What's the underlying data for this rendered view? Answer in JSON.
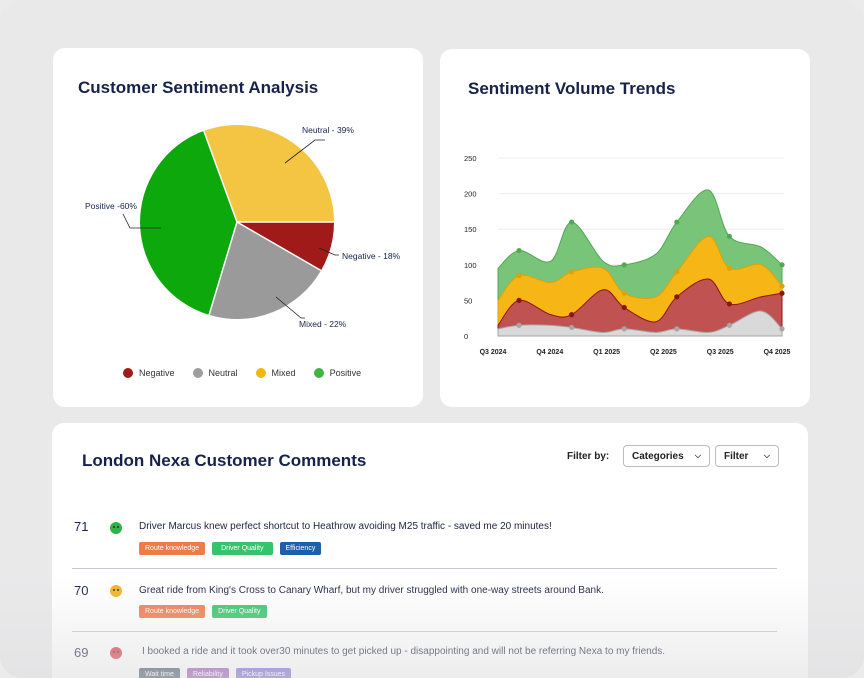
{
  "pie_card": {
    "title": "Customer Sentiment Analysis",
    "slices": [
      {
        "label": "Neutral - 39%",
        "color": "#f4c542"
      },
      {
        "label": "Negative - 18%",
        "color": "#a01a1a"
      },
      {
        "label": "Mixed - 22%",
        "color": "#9a9a9a"
      },
      {
        "label": "Positive -60%",
        "color": "#0ca80c"
      }
    ],
    "legend": [
      {
        "label": "Negative",
        "color": "#a01a1a"
      },
      {
        "label": "Neutral",
        "color": "#9e9e9e"
      },
      {
        "label": "Mixed",
        "color": "#f1b712"
      },
      {
        "label": "Positive",
        "color": "#43b443"
      }
    ]
  },
  "chart_data": {
    "type": "area",
    "title": "Sentiment Volume Trends",
    "x_labels": [
      "Q3 2024",
      "Q4 2024",
      "Q1 2025",
      "Q2 2025",
      "Q3 2025",
      "Q4 2025"
    ],
    "y_ticks": [
      "250",
      "200",
      "150",
      "100",
      "50",
      "0"
    ],
    "ylim": [
      0,
      250
    ],
    "grid": true,
    "x_positions": [
      0,
      0.4,
      1.0,
      1.4,
      2.0,
      2.4,
      3.0,
      3.4,
      4.0,
      4.4,
      5.0,
      5.4
    ],
    "series": [
      {
        "color": "#d9d9d9",
        "stroke": "#a6a6a6",
        "values": [
          10,
          15,
          15,
          12,
          5,
          10,
          5,
          10,
          5,
          15,
          35,
          10
        ]
      },
      {
        "color": "#c05252",
        "stroke": "#8b1414",
        "values": [
          15,
          50,
          30,
          30,
          65,
          40,
          20,
          55,
          80,
          45,
          55,
          60
        ]
      },
      {
        "color": "#f6b716",
        "stroke": "#e0a106",
        "values": [
          50,
          85,
          75,
          90,
          95,
          60,
          55,
          90,
          140,
          95,
          100,
          70
        ]
      },
      {
        "color": "#78c478",
        "stroke": "#52a852",
        "values": [
          95,
          120,
          105,
          160,
          105,
          100,
          115,
          160,
          205,
          140,
          125,
          100
        ]
      }
    ]
  },
  "comments": {
    "title": "London Nexa Customer Comments",
    "filter_label": "Filter by:",
    "categories_label": "Categories",
    "filter_button": "Filter",
    "rows": [
      {
        "number": "71",
        "sentiment": "positive",
        "face_color": "#2fb24a",
        "text": "Driver Marcus knew perfect shortcut to Heathrow avoiding M25 traffic - saved me 20 minutes!",
        "tags": [
          {
            "label": "Route knowledge",
            "color": "#f07a4a"
          },
          {
            "label": "Driver Quality",
            "color": "#34c46a"
          },
          {
            "label": "Efficiency",
            "color": "#1f5fa8"
          }
        ]
      },
      {
        "number": "70",
        "sentiment": "mixed",
        "face_color": "#f3b321",
        "text": "Great ride from King's Cross to Canary Wharf, but my driver struggled with one-way streets around Bank.",
        "tags": [
          {
            "label": "Route knowledge",
            "color": "#f07a4a"
          },
          {
            "label": "Driver Quality",
            "color": "#34c46a"
          }
        ]
      },
      {
        "number": "69",
        "sentiment": "negative",
        "face_color": "#d9343a",
        "text": "I booked a ride and it took over30 minutes to get picked up - disappointing and will not be referring Nexa to my friends.",
        "tags": [
          {
            "label": "Wait time",
            "color": "#2f4256"
          },
          {
            "label": "Reliability",
            "color": "#8e44ad"
          },
          {
            "label": "Pickup Issues",
            "color": "#6a5acd"
          }
        ]
      }
    ]
  }
}
